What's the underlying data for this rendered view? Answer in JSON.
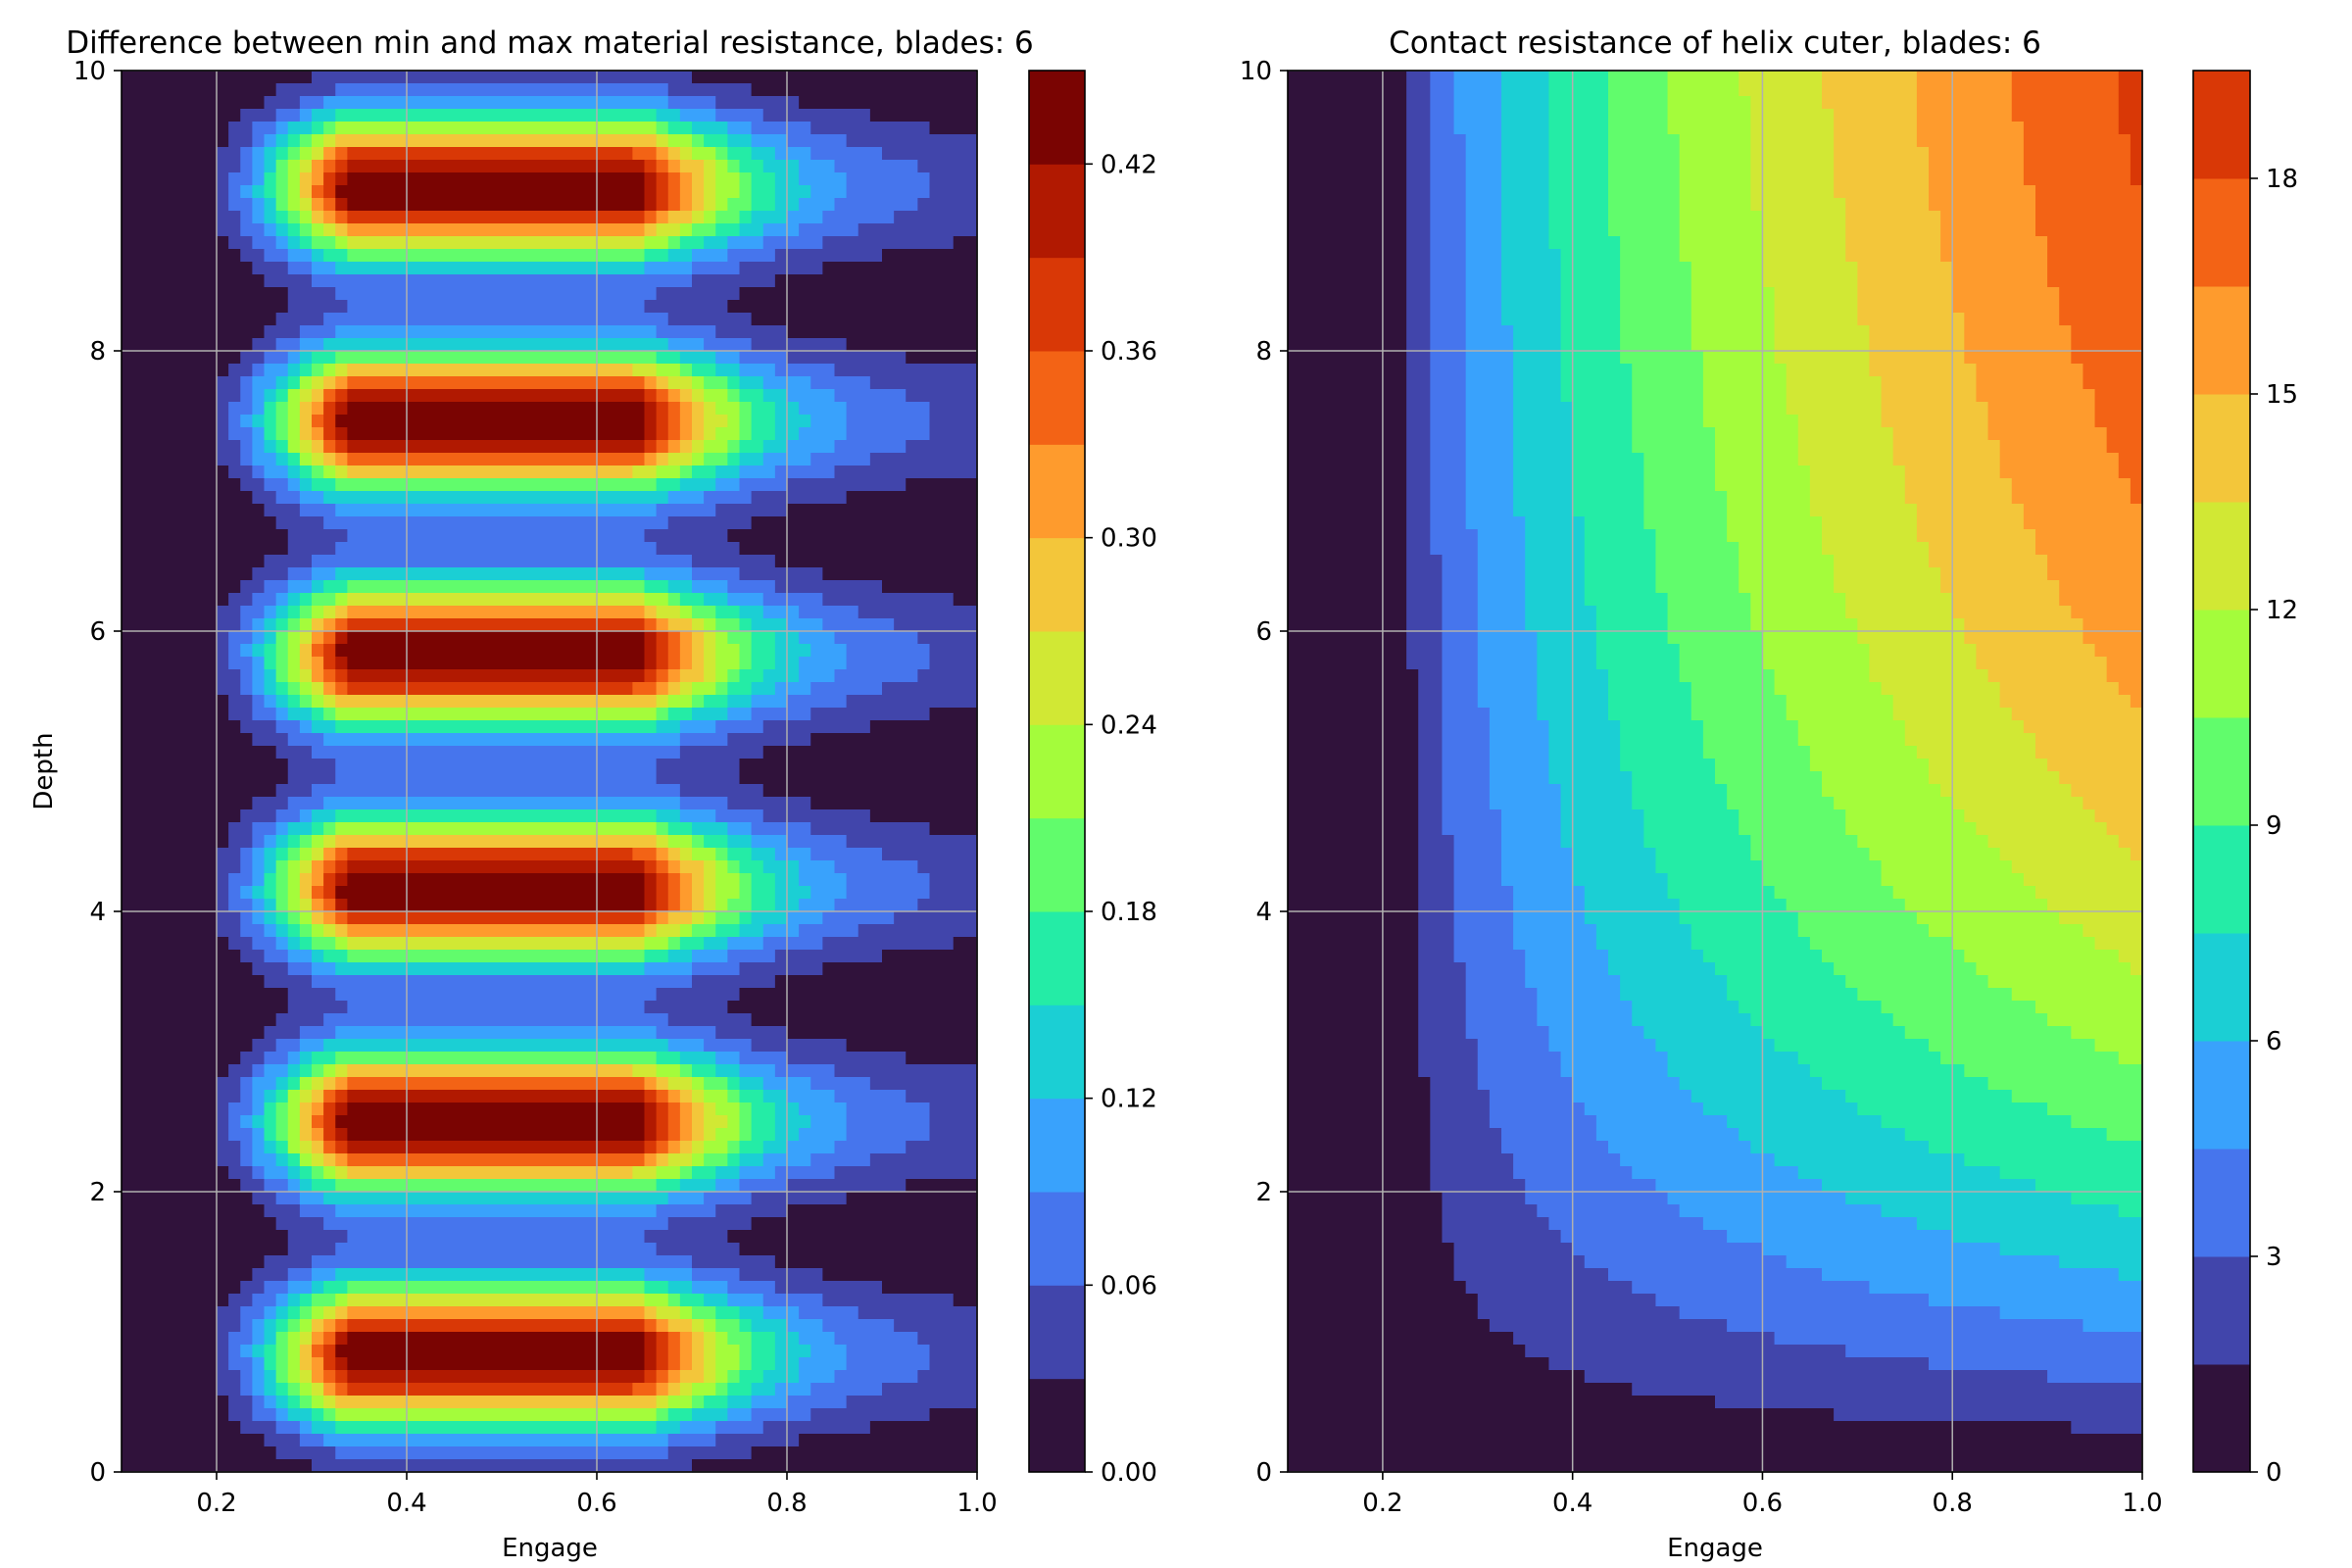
{
  "chart_data": [
    {
      "type": "heatmap",
      "subtype": "filled-contour",
      "title": "Difference between min and max material resistance, blades: 6",
      "xlabel": "Engage",
      "ylabel": "Depth",
      "xlim": [
        0.1,
        1.0
      ],
      "ylim": [
        0,
        10
      ],
      "xticks": [
        0.2,
        0.4,
        0.6,
        0.8,
        1.0
      ],
      "xtick_labels": [
        "0.2",
        "0.4",
        "0.6",
        "0.8",
        "1.0"
      ],
      "yticks": [
        0,
        2,
        4,
        6,
        8,
        10
      ],
      "ytick_labels": [
        "0",
        "2",
        "4",
        "6",
        "8",
        "10"
      ],
      "grid": true,
      "colormap": "turbo",
      "levels": [
        0.0,
        0.03,
        0.06,
        0.09,
        0.12,
        0.15,
        0.18,
        0.21,
        0.24,
        0.27,
        0.3,
        0.33,
        0.36,
        0.39,
        0.42,
        0.45
      ],
      "colorbar_ticks": [
        0.0,
        0.06,
        0.12,
        0.18,
        0.24,
        0.3,
        0.36,
        0.42
      ],
      "colorbar_tick_labels": [
        "0.00",
        "0.06",
        "0.12",
        "0.18",
        "0.24",
        "0.30",
        "0.36",
        "0.42"
      ],
      "peak_depths": [
        0.83,
        2.5,
        4.17,
        5.83,
        7.5,
        9.17
      ],
      "peak_engage": 0.55,
      "peak_value": 0.45,
      "secondary_peak_engage": 0.37,
      "secondary_peak_value": 0.36
    },
    {
      "type": "heatmap",
      "subtype": "filled-contour",
      "title": "Contact resistance of helix cuter, blades: 6",
      "xlabel": "Engage",
      "ylabel": "",
      "xlim": [
        0.1,
        1.0
      ],
      "ylim": [
        0,
        10
      ],
      "xticks": [
        0.2,
        0.4,
        0.6,
        0.8,
        1.0
      ],
      "xtick_labels": [
        "0.2",
        "0.4",
        "0.6",
        "0.8",
        "1.0"
      ],
      "yticks": [
        0,
        2,
        4,
        6,
        8,
        10
      ],
      "ytick_labels": [
        "0",
        "2",
        "4",
        "6",
        "8",
        "10"
      ],
      "grid": true,
      "colormap": "turbo",
      "levels": [
        0.0,
        1.5,
        3.0,
        4.5,
        6.0,
        7.5,
        9.0,
        10.5,
        12.0,
        13.5,
        15.0,
        16.5,
        18.0,
        19.5
      ],
      "colorbar_ticks": [
        0,
        3,
        6,
        9,
        12,
        15,
        18
      ],
      "colorbar_tick_labels": [
        "0",
        "3",
        "6",
        "9",
        "12",
        "15",
        "18"
      ],
      "max_value": 19.5
    }
  ],
  "colors": {
    "turbo": [
      "#30123b",
      "#4145ab",
      "#4675ed",
      "#39a2fc",
      "#1bcfd4",
      "#24eca6",
      "#61fc6c",
      "#a4fc3b",
      "#d1e834",
      "#f3c63a",
      "#fe9b2d",
      "#f36315",
      "#d93806",
      "#b11901",
      "#7a0402"
    ]
  }
}
